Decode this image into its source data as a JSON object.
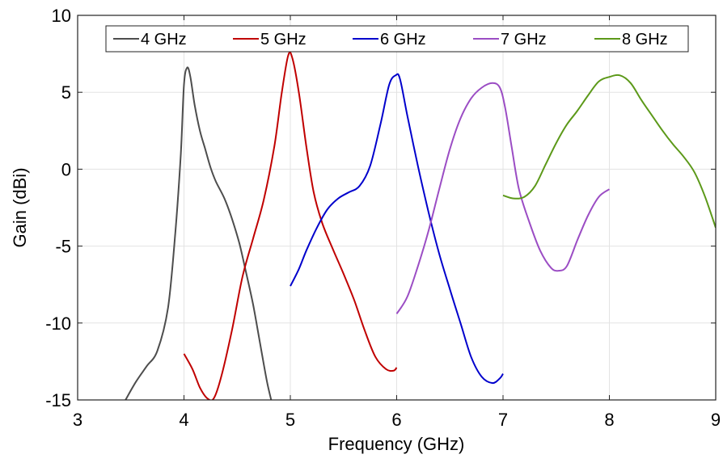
{
  "chart_data": {
    "type": "line",
    "xlabel": "Frequency (GHz)",
    "ylabel": "Gain (dBi)",
    "xlim": [
      3,
      9
    ],
    "ylim": [
      -15,
      10
    ],
    "xticks": [
      3,
      4,
      5,
      6,
      7,
      8,
      9
    ],
    "yticks": [
      -15,
      -10,
      -5,
      0,
      5,
      10
    ],
    "xtick_labels": [
      "3",
      "4",
      "5",
      "6",
      "7",
      "8",
      "9"
    ],
    "ytick_labels": [
      "-15",
      "-10",
      "-5",
      "0",
      "5",
      "10"
    ],
    "grid": true,
    "legend_position": "top",
    "series": [
      {
        "name": "4 GHz",
        "color": "#4d4d4d",
        "points": [
          [
            3.45,
            -15
          ],
          [
            3.55,
            -13.8
          ],
          [
            3.65,
            -12.8
          ],
          [
            3.75,
            -11.8
          ],
          [
            3.85,
            -9
          ],
          [
            3.92,
            -4
          ],
          [
            3.97,
            1
          ],
          [
            4.0,
            5.5
          ],
          [
            4.03,
            6.6
          ],
          [
            4.06,
            6.0
          ],
          [
            4.1,
            4.2
          ],
          [
            4.15,
            2.5
          ],
          [
            4.2,
            1.3
          ],
          [
            4.25,
            0.1
          ],
          [
            4.3,
            -0.8
          ],
          [
            4.38,
            -1.9
          ],
          [
            4.45,
            -3.2
          ],
          [
            4.52,
            -4.8
          ],
          [
            4.58,
            -6.6
          ],
          [
            4.65,
            -8.8
          ],
          [
            4.72,
            -11.5
          ],
          [
            4.78,
            -13.8
          ],
          [
            4.82,
            -15
          ]
        ]
      },
      {
        "name": "5 GHz",
        "color": "#c00000",
        "points": [
          [
            4.0,
            -12
          ],
          [
            4.08,
            -13
          ],
          [
            4.15,
            -14.2
          ],
          [
            4.22,
            -14.9
          ],
          [
            4.28,
            -14.9
          ],
          [
            4.35,
            -13.5
          ],
          [
            4.45,
            -10.5
          ],
          [
            4.55,
            -7
          ],
          [
            4.65,
            -4.5
          ],
          [
            4.75,
            -2
          ],
          [
            4.85,
            1.5
          ],
          [
            4.92,
            5.0
          ],
          [
            4.98,
            7.4
          ],
          [
            5.02,
            7.2
          ],
          [
            5.08,
            5.0
          ],
          [
            5.15,
            1.5
          ],
          [
            5.22,
            -1.5
          ],
          [
            5.3,
            -3.5
          ],
          [
            5.4,
            -5.2
          ],
          [
            5.5,
            -6.8
          ],
          [
            5.6,
            -8.5
          ],
          [
            5.7,
            -10.5
          ],
          [
            5.8,
            -12.2
          ],
          [
            5.9,
            -13.0
          ],
          [
            5.97,
            -13.1
          ],
          [
            6.0,
            -12.9
          ]
        ]
      },
      {
        "name": "6 GHz",
        "color": "#0000cc",
        "points": [
          [
            5.0,
            -7.6
          ],
          [
            5.08,
            -6.5
          ],
          [
            5.15,
            -5.3
          ],
          [
            5.25,
            -3.8
          ],
          [
            5.35,
            -2.6
          ],
          [
            5.45,
            -1.9
          ],
          [
            5.55,
            -1.5
          ],
          [
            5.65,
            -1.1
          ],
          [
            5.75,
            0.2
          ],
          [
            5.85,
            3.0
          ],
          [
            5.93,
            5.5
          ],
          [
            5.99,
            6.1
          ],
          [
            6.03,
            5.9
          ],
          [
            6.1,
            3.5
          ],
          [
            6.2,
            0.2
          ],
          [
            6.3,
            -2.8
          ],
          [
            6.4,
            -5.5
          ],
          [
            6.5,
            -7.8
          ],
          [
            6.6,
            -10.0
          ],
          [
            6.7,
            -12.2
          ],
          [
            6.8,
            -13.5
          ],
          [
            6.9,
            -13.9
          ],
          [
            6.97,
            -13.6
          ],
          [
            7.0,
            -13.3
          ]
        ]
      },
      {
        "name": "7 GHz",
        "color": "#9b4dc4",
        "points": [
          [
            6.0,
            -9.4
          ],
          [
            6.1,
            -8.3
          ],
          [
            6.2,
            -6.3
          ],
          [
            6.3,
            -4.0
          ],
          [
            6.4,
            -1.3
          ],
          [
            6.5,
            1.3
          ],
          [
            6.6,
            3.3
          ],
          [
            6.7,
            4.6
          ],
          [
            6.8,
            5.3
          ],
          [
            6.9,
            5.6
          ],
          [
            6.97,
            5.3
          ],
          [
            7.02,
            4.0
          ],
          [
            7.08,
            1.5
          ],
          [
            7.15,
            -1.3
          ],
          [
            7.25,
            -3.5
          ],
          [
            7.35,
            -5.3
          ],
          [
            7.45,
            -6.4
          ],
          [
            7.52,
            -6.6
          ],
          [
            7.6,
            -6.3
          ],
          [
            7.7,
            -4.6
          ],
          [
            7.8,
            -3.0
          ],
          [
            7.9,
            -1.8
          ],
          [
            8.0,
            -1.3
          ]
        ]
      },
      {
        "name": "8 GHz",
        "color": "#5c9919",
        "points": [
          [
            7.0,
            -1.7
          ],
          [
            7.1,
            -1.9
          ],
          [
            7.2,
            -1.8
          ],
          [
            7.3,
            -1.1
          ],
          [
            7.4,
            0.3
          ],
          [
            7.5,
            1.7
          ],
          [
            7.6,
            2.9
          ],
          [
            7.7,
            3.8
          ],
          [
            7.8,
            4.8
          ],
          [
            7.9,
            5.7
          ],
          [
            8.0,
            6.0
          ],
          [
            8.1,
            6.1
          ],
          [
            8.2,
            5.6
          ],
          [
            8.3,
            4.5
          ],
          [
            8.4,
            3.5
          ],
          [
            8.5,
            2.5
          ],
          [
            8.6,
            1.6
          ],
          [
            8.7,
            0.8
          ],
          [
            8.8,
            -0.2
          ],
          [
            8.9,
            -1.8
          ],
          [
            9.0,
            -3.8
          ]
        ]
      }
    ]
  }
}
